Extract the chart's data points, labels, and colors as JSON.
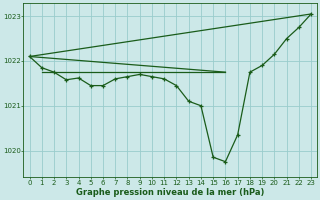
{
  "background_color": "#cce8e8",
  "grid_color": "#99cccc",
  "line_color": "#1a5c1a",
  "title": "Graphe pression niveau de la mer (hPa)",
  "xlim": [
    -0.5,
    23.5
  ],
  "ylim": [
    1019.4,
    1023.3
  ],
  "yticks": [
    1020,
    1021,
    1022,
    1023
  ],
  "xticks": [
    0,
    1,
    2,
    3,
    4,
    5,
    6,
    7,
    8,
    9,
    10,
    11,
    12,
    13,
    14,
    15,
    16,
    17,
    18,
    19,
    20,
    21,
    22,
    23
  ],
  "series_main": {
    "x": [
      0,
      1,
      2,
      3,
      4,
      5,
      6,
      7,
      8,
      9,
      10,
      11,
      12,
      13,
      14,
      15,
      16,
      17,
      18,
      19,
      20,
      21,
      22,
      23
    ],
    "y": [
      1022.1,
      1021.85,
      1021.75,
      1021.58,
      1021.62,
      1021.45,
      1021.45,
      1021.6,
      1021.65,
      1021.7,
      1021.65,
      1021.6,
      1021.45,
      1021.1,
      1021.0,
      1019.85,
      1019.75,
      1020.35,
      1021.75,
      1021.9,
      1022.15,
      1022.5,
      1022.75,
      1023.05
    ]
  },
  "series_flat": {
    "x": [
      1,
      16
    ],
    "y": [
      1021.75,
      1021.75
    ]
  },
  "series_upper_diag": {
    "x": [
      0,
      23
    ],
    "y": [
      1022.1,
      1023.05
    ]
  },
  "series_lower_diag": {
    "x": [
      0,
      16
    ],
    "y": [
      1022.1,
      1021.75
    ]
  }
}
